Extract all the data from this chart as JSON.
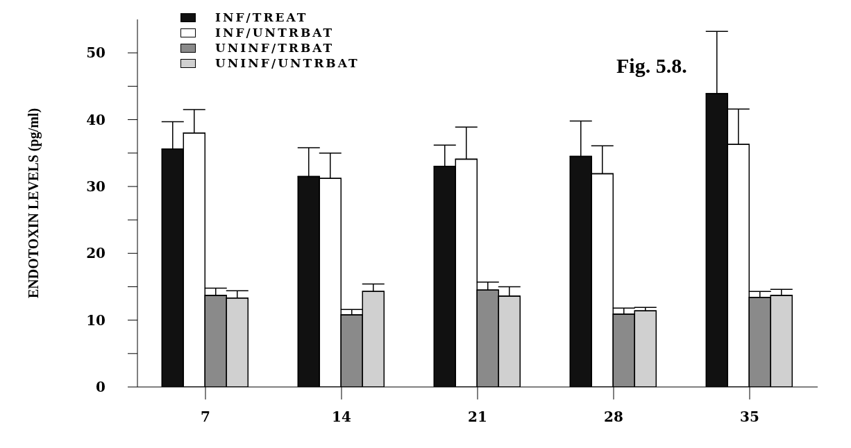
{
  "chart_data": {
    "type": "bar",
    "ylabel": "ENDOTOXIN LEVELS (pg/ml)",
    "annotations": [
      "Fig. 5.8."
    ],
    "categories": [
      "7",
      "14",
      "21",
      "28",
      "35"
    ],
    "series": [
      {
        "name": "INF/TREAT",
        "color": "#111111",
        "values": [
          35.6,
          31.5,
          33,
          34.5,
          43.9
        ],
        "errors": [
          4.1,
          4.3,
          3.2,
          5.3,
          9.3
        ]
      },
      {
        "name": "INF/UNTRBAT",
        "color": "#ffffff",
        "values": [
          38,
          31.2,
          34.1,
          31.9,
          36.3
        ],
        "errors": [
          3.5,
          3.8,
          4.8,
          4.2,
          5.3
        ]
      },
      {
        "name": "UNINF/TRBAT",
        "color": "#8a8a8a",
        "values": [
          13.7,
          10.8,
          14.5,
          10.9,
          13.4
        ],
        "errors": [
          1.1,
          0.8,
          1.2,
          0.9,
          0.9
        ]
      },
      {
        "name": "UNINF/UNTRBAT",
        "color": "#d0d0d0",
        "values": [
          13.3,
          14.3,
          13.6,
          11.4,
          13.7
        ],
        "errors": [
          1.1,
          1.1,
          1.4,
          0.5,
          0.9
        ]
      }
    ],
    "ylim": [
      0,
      55
    ],
    "yticks": [
      0,
      {
        "value": 5,
        "label": null
      },
      10,
      {
        "value": 15,
        "label": null
      },
      20,
      {
        "value": 25,
        "label": null
      },
      30,
      {
        "value": 35,
        "label": null
      },
      40,
      {
        "value": 45,
        "label": null
      },
      50
    ],
    "legend": "top left",
    "grid": false
  }
}
